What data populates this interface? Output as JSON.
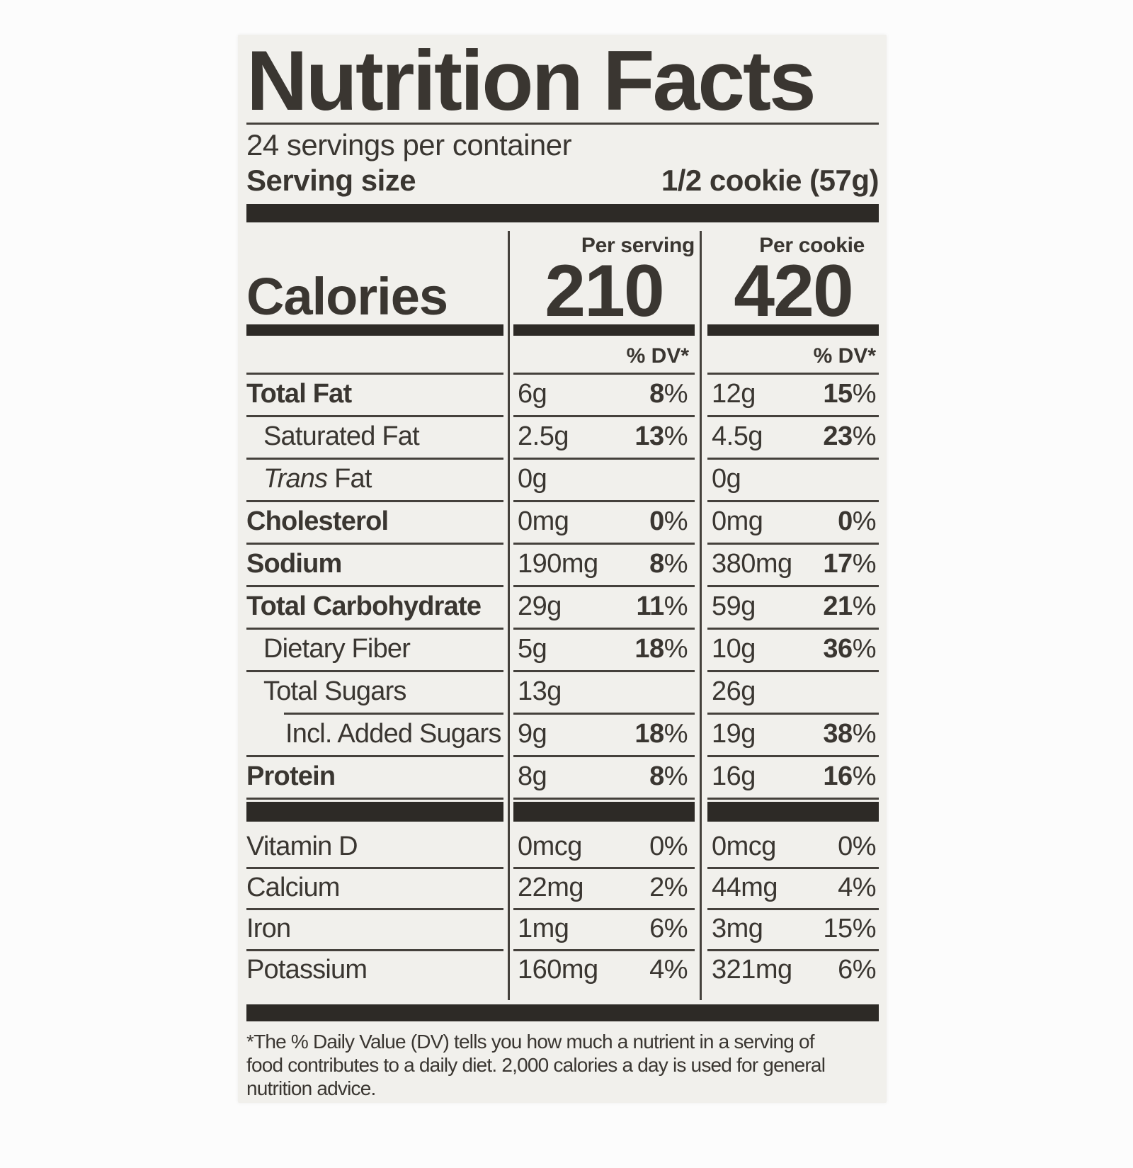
{
  "colors": {
    "page_bg": "#fcfcfc",
    "card_bg": "#f1f0ec",
    "ink": "#3a3631",
    "bar": "#2d2a26",
    "rule": "#45413c"
  },
  "label": {
    "title": "Nutrition Facts",
    "servings_per_container": "24 servings per container",
    "serving_size_label": "Serving size",
    "serving_size_value": "1/2 cookie (57g)",
    "per_serving_header": "Per serving",
    "per_cookie_header": "Per cookie",
    "calories_label": "Calories",
    "calories_per_serving": "210",
    "calories_per_cookie": "420",
    "dv_header": "% DV*",
    "nutrients": [
      {
        "name": "Total Fat",
        "bold": true,
        "indent": 0,
        "amount_serving": "6g",
        "pct_serving": "8%",
        "amount_cookie": "12g",
        "pct_cookie": "15%",
        "pct_bold": true
      },
      {
        "name": "Saturated Fat",
        "bold": false,
        "indent": 1,
        "amount_serving": "2.5g",
        "pct_serving": "13%",
        "amount_cookie": "4.5g",
        "pct_cookie": "23%",
        "pct_bold": true
      },
      {
        "name": "Trans Fat",
        "italic_prefix": "Trans",
        "name_rest": " Fat",
        "bold": false,
        "indent": 1,
        "amount_serving": "0g",
        "pct_serving": "",
        "amount_cookie": "0g",
        "pct_cookie": "",
        "pct_bold": true
      },
      {
        "name": "Cholesterol",
        "bold": true,
        "indent": 0,
        "amount_serving": "0mg",
        "pct_serving": "0%",
        "amount_cookie": "0mg",
        "pct_cookie": "0%",
        "pct_bold": true
      },
      {
        "name": "Sodium",
        "bold": true,
        "indent": 0,
        "amount_serving": "190mg",
        "pct_serving": "8%",
        "amount_cookie": "380mg",
        "pct_cookie": "17%",
        "pct_bold": true
      },
      {
        "name": "Total Carbohydrate",
        "bold": true,
        "indent": 0,
        "amount_serving": "29g",
        "pct_serving": "11%",
        "amount_cookie": "59g",
        "pct_cookie": "21%",
        "pct_bold": true
      },
      {
        "name": "Dietary Fiber",
        "bold": false,
        "indent": 1,
        "amount_serving": "5g",
        "pct_serving": "18%",
        "amount_cookie": "10g",
        "pct_cookie": "36%",
        "pct_bold": true
      },
      {
        "name": "Total Sugars",
        "bold": false,
        "indent": 1,
        "amount_serving": "13g",
        "pct_serving": "",
        "amount_cookie": "26g",
        "pct_cookie": "",
        "pct_bold": true
      },
      {
        "name": "Incl. Added Sugars",
        "bold": false,
        "indent": 2,
        "rule_indent": true,
        "amount_serving": "9g",
        "pct_serving": "18%",
        "amount_cookie": "19g",
        "pct_cookie": "38%",
        "pct_bold": true
      },
      {
        "name": "Protein",
        "bold": true,
        "indent": 0,
        "amount_serving": "8g",
        "pct_serving": "8%",
        "amount_cookie": "16g",
        "pct_cookie": "16%",
        "pct_bold": true
      }
    ],
    "vitamins": [
      {
        "name": "Vitamin D",
        "amount_serving": "0mcg",
        "pct_serving": "0%",
        "amount_cookie": "0mcg",
        "pct_cookie": "0%",
        "pct_bold": false,
        "no_top_rule": true
      },
      {
        "name": "Calcium",
        "amount_serving": "22mg",
        "pct_serving": "2%",
        "amount_cookie": "44mg",
        "pct_cookie": "4%",
        "pct_bold": false
      },
      {
        "name": "Iron",
        "amount_serving": "1mg",
        "pct_serving": "6%",
        "amount_cookie": "3mg",
        "pct_cookie": "15%",
        "pct_bold": false
      },
      {
        "name": "Potassium",
        "amount_serving": "160mg",
        "pct_serving": "4%",
        "amount_cookie": "321mg",
        "pct_cookie": "6%",
        "pct_bold": false
      }
    ],
    "footnote": "*The % Daily Value (DV) tells you how much a nutrient in a serving of\nfood contributes to a daily diet. 2,000 calories a day is used for general\nnutrition advice."
  }
}
